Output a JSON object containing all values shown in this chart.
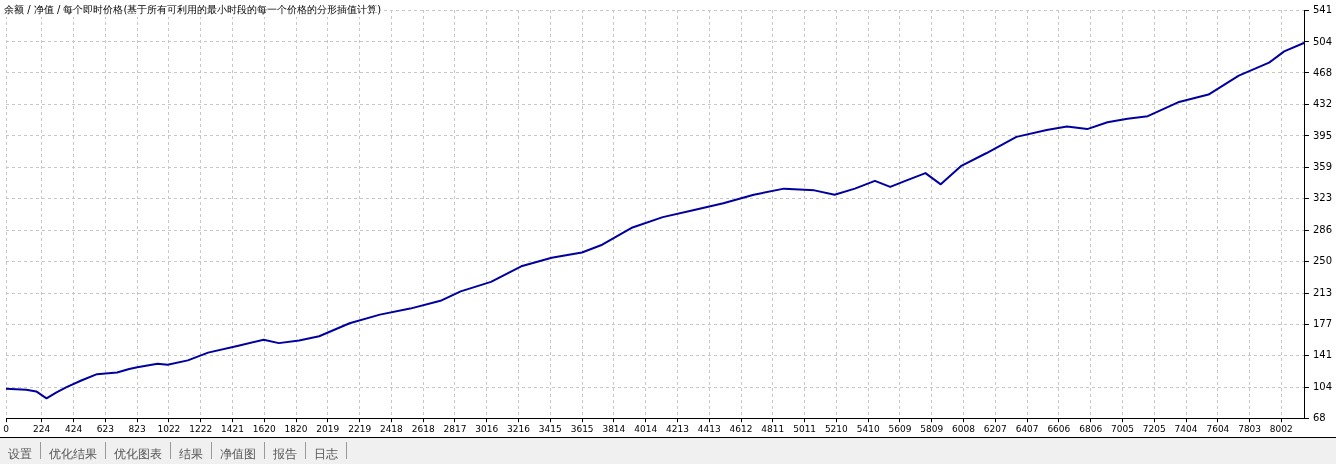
{
  "chart_data": {
    "type": "line",
    "title": "余额 / 净值 / 每个即时价格(基于所有可利用的最小时段的每一个价格的分形插值计算)",
    "x": [
      0,
      127,
      190,
      254,
      317,
      380,
      476,
      571,
      697,
      773,
      824,
      951,
      1014,
      1141,
      1268,
      1458,
      1617,
      1712,
      1839,
      1965,
      2156,
      2346,
      2536,
      2726,
      2853,
      3043,
      3233,
      3424,
      3614,
      3741,
      3931,
      4121,
      4311,
      4501,
      4692,
      4882,
      5072,
      5199,
      5326,
      5452,
      5548,
      5643,
      5769,
      5865,
      5991,
      6150,
      6340,
      6530,
      6657,
      6784,
      6911,
      7037,
      7164,
      7354,
      7545,
      7735,
      7925,
      8020,
      8147
    ],
    "series": [
      {
        "color": "#0000a0",
        "values": [
          102,
          101,
          99,
          91,
          98,
          104,
          112,
          119,
          121,
          125,
          127,
          131,
          130,
          135,
          144,
          152,
          159,
          155,
          158,
          163,
          178,
          188,
          195,
          204,
          215,
          226,
          244,
          254,
          260,
          269,
          289,
          301,
          309,
          317,
          327,
          334,
          332,
          327,
          334,
          343,
          336,
          343,
          352,
          339,
          360,
          375,
          394,
          402,
          406,
          403,
          411,
          415,
          418,
          434,
          443,
          465,
          480,
          493,
          503
        ]
      }
    ],
    "xlim": [
      0,
      8150
    ],
    "xticks": [
      0,
      224,
      424,
      623,
      823,
      1022,
      1222,
      1421,
      1620,
      1820,
      2019,
      2219,
      2418,
      2618,
      2817,
      3016,
      3216,
      3415,
      3615,
      3814,
      4014,
      4213,
      4413,
      4612,
      4811,
      5011,
      5210,
      5410,
      5609,
      5809,
      6008,
      6207,
      6407,
      6606,
      6806,
      7005,
      7205,
      7404,
      7604,
      7803,
      8002
    ],
    "ylim": [
      68,
      541
    ],
    "yticks": [
      68,
      104,
      141,
      177,
      213,
      250,
      286,
      323,
      359,
      395,
      432,
      468,
      504,
      541
    ],
    "grid": true,
    "legend": false,
    "marker": "none",
    "line_style": "solid",
    "annotations": [
      "设置",
      "优化结果",
      "优化图表",
      "结果",
      "净值图",
      "报告",
      "日志"
    ]
  }
}
